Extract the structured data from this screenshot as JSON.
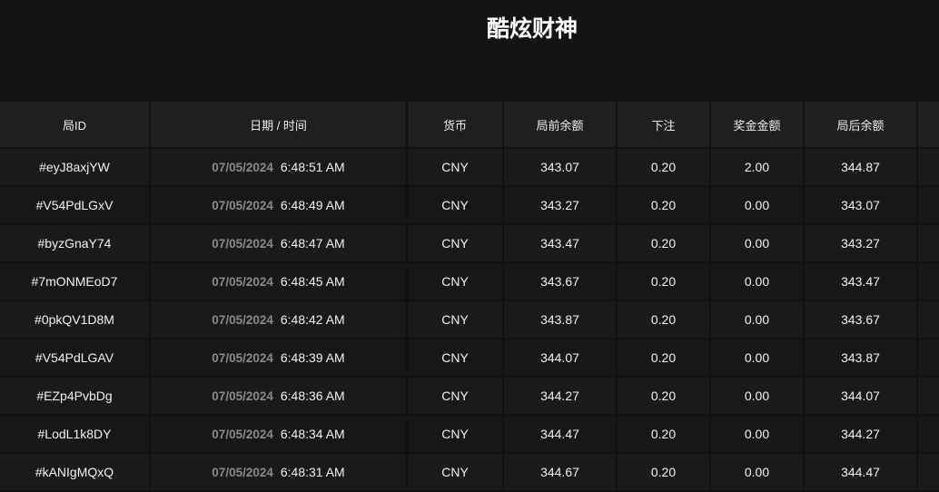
{
  "title": "酷炫财神",
  "columns": [
    "局ID",
    "日期 / 时间",
    "货币",
    "局前余额",
    "下注",
    "奖金金额",
    "局后余额"
  ],
  "rows": [
    {
      "id": "#eyJ8axjYW",
      "date": "07/05/2024",
      "time": "6:48:51 AM",
      "currency": "CNY",
      "before": "343.07",
      "bet": "0.20",
      "win": "2.00",
      "after": "344.87"
    },
    {
      "id": "#V54PdLGxV",
      "date": "07/05/2024",
      "time": "6:48:49 AM",
      "currency": "CNY",
      "before": "343.27",
      "bet": "0.20",
      "win": "0.00",
      "after": "343.07"
    },
    {
      "id": "#byzGnaY74",
      "date": "07/05/2024",
      "time": "6:48:47 AM",
      "currency": "CNY",
      "before": "343.47",
      "bet": "0.20",
      "win": "0.00",
      "after": "343.27"
    },
    {
      "id": "#7mONMEoD7",
      "date": "07/05/2024",
      "time": "6:48:45 AM",
      "currency": "CNY",
      "before": "343.67",
      "bet": "0.20",
      "win": "0.00",
      "after": "343.47"
    },
    {
      "id": "#0pkQV1D8M",
      "date": "07/05/2024",
      "time": "6:48:42 AM",
      "currency": "CNY",
      "before": "343.87",
      "bet": "0.20",
      "win": "0.00",
      "after": "343.67"
    },
    {
      "id": "#V54PdLGAV",
      "date": "07/05/2024",
      "time": "6:48:39 AM",
      "currency": "CNY",
      "before": "344.07",
      "bet": "0.20",
      "win": "0.00",
      "after": "343.87"
    },
    {
      "id": "#EZp4PvbDg",
      "date": "07/05/2024",
      "time": "6:48:36 AM",
      "currency": "CNY",
      "before": "344.27",
      "bet": "0.20",
      "win": "0.00",
      "after": "344.07"
    },
    {
      "id": "#LodL1k8DY",
      "date": "07/05/2024",
      "time": "6:48:34 AM",
      "currency": "CNY",
      "before": "344.47",
      "bet": "0.20",
      "win": "0.00",
      "after": "344.27"
    },
    {
      "id": "#kANIgMQxQ",
      "date": "07/05/2024",
      "time": "6:48:31 AM",
      "currency": "CNY",
      "before": "344.67",
      "bet": "0.20",
      "win": "0.00",
      "after": "344.47"
    }
  ]
}
